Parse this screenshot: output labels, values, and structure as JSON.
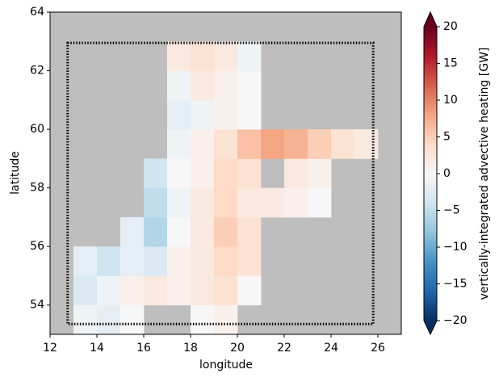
{
  "chart_data": {
    "type": "heatmap",
    "xlabel": "longitude",
    "ylabel": "latitude",
    "xlim": [
      12,
      27
    ],
    "ylim": [
      53,
      64
    ],
    "xticks": [
      12,
      14,
      16,
      18,
      20,
      22,
      24,
      26
    ],
    "yticks": [
      54,
      56,
      58,
      60,
      62,
      64
    ],
    "background": "#bebebe",
    "x": [
      12.5,
      13.5,
      14.5,
      15.5,
      16.5,
      17.5,
      18.5,
      19.5,
      20.5,
      21.5,
      22.5,
      23.5,
      24.5,
      25.5,
      26.5
    ],
    "y": [
      53.5,
      54.5,
      55.5,
      56.5,
      57.5,
      58.5,
      59.5,
      60.5,
      61.5,
      62.5,
      63.5
    ],
    "z": [
      [
        null,
        -1,
        -2,
        0,
        null,
        null,
        0,
        1,
        null,
        null,
        null,
        null,
        null,
        null,
        null
      ],
      [
        null,
        -3,
        -1,
        1,
        2,
        1,
        2,
        3,
        0,
        null,
        null,
        null,
        null,
        null,
        null
      ],
      [
        null,
        -2,
        -4,
        -2,
        -3,
        1,
        2,
        4,
        3,
        null,
        null,
        null,
        null,
        null,
        null
      ],
      [
        null,
        null,
        null,
        -2,
        -6,
        0,
        2,
        5,
        3,
        null,
        null,
        null,
        null,
        null,
        null
      ],
      [
        null,
        null,
        null,
        null,
        -5,
        -1,
        2,
        4,
        2,
        2,
        1,
        0,
        null,
        null,
        null
      ],
      [
        null,
        null,
        null,
        null,
        -4,
        0,
        1,
        4,
        3,
        null,
        2,
        1,
        null,
        null,
        null
      ],
      [
        null,
        null,
        null,
        null,
        null,
        -1,
        1,
        3,
        6,
        8,
        7,
        5,
        3,
        2,
        null
      ],
      [
        null,
        null,
        null,
        null,
        null,
        -2,
        -1,
        1,
        0,
        null,
        null,
        null,
        null,
        null,
        null
      ],
      [
        null,
        null,
        null,
        null,
        null,
        -1,
        2,
        1,
        0,
        null,
        null,
        null,
        null,
        null,
        null
      ],
      [
        null,
        null,
        null,
        null,
        null,
        2,
        3,
        2,
        -1,
        null,
        null,
        null,
        null,
        null,
        null
      ],
      [
        null,
        null,
        null,
        null,
        null,
        null,
        null,
        null,
        null,
        null,
        null,
        null,
        null,
        null,
        null
      ]
    ],
    "box": {
      "lon": [
        12.75,
        25.8
      ],
      "lat": [
        53.35,
        62.95
      ],
      "color": "#000000"
    },
    "colorbar": {
      "label": "vertically-integrated advective heating [GW]",
      "clim": [
        -20,
        20
      ],
      "colors": [
        "#053061",
        "#2166ac",
        "#4393c3",
        "#92c5de",
        "#d1e5f0",
        "#f7f7f7",
        "#fddbc7",
        "#f4a582",
        "#d6604d",
        "#b2182b",
        "#67001f"
      ],
      "ticks": [
        {
          "value": -20,
          "label": "−20"
        },
        {
          "value": -15,
          "label": "−15"
        },
        {
          "value": -10,
          "label": "−10"
        },
        {
          "value": -5,
          "label": "−5"
        },
        0,
        5,
        10,
        15,
        20
      ]
    }
  }
}
